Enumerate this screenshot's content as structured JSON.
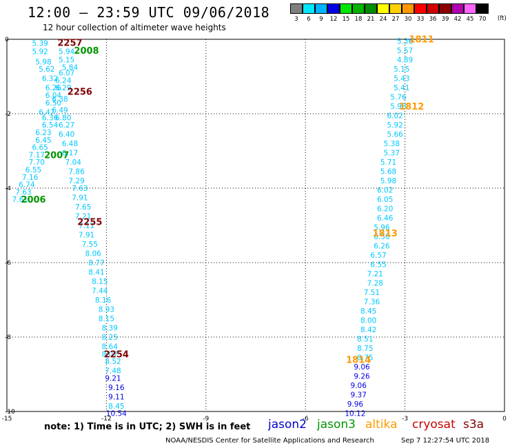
{
  "header": {
    "title": "12:00 – 23:59 UTC 09/06/2018",
    "subtitle": "12 hour collection of altimeter wave heights"
  },
  "colorbar": {
    "bins": [
      {
        "label": "3",
        "color": "#7f7f7f"
      },
      {
        "label": "6",
        "color": "#00e8ff"
      },
      {
        "label": "9",
        "color": "#00b3ff"
      },
      {
        "label": "12",
        "color": "#0000e6"
      },
      {
        "label": "15",
        "color": "#00e600"
      },
      {
        "label": "18",
        "color": "#00b400"
      },
      {
        "label": "21",
        "color": "#008c00"
      },
      {
        "label": "24",
        "color": "#ffff00"
      },
      {
        "label": "27",
        "color": "#ffd000"
      },
      {
        "label": "30",
        "color": "#ff9900"
      },
      {
        "label": "33",
        "color": "#ff0000"
      },
      {
        "label": "36",
        "color": "#d00000"
      },
      {
        "label": "39",
        "color": "#8c0000"
      },
      {
        "label": "42",
        "color": "#b000b0"
      },
      {
        "label": "45",
        "color": "#ff66ff"
      },
      {
        "label": "70",
        "color": "#000000"
      }
    ],
    "unit": "(ft)"
  },
  "footer": {
    "note": "note:  1) Time is in UTC;  2) SWH is in feet",
    "credit": "NOAA/NESDIS Center for Satellite Applications and Research",
    "timestamp": "Sep  7 12:27:54 UTC 2018"
  },
  "legend": [
    {
      "label": "jason2",
      "color": "#0000c8"
    },
    {
      "label": "jason3",
      "color": "#009600"
    },
    {
      "label": "altika",
      "color": "#ff9900"
    },
    {
      "label": "cryosat",
      "color": "#c80000"
    },
    {
      "label": "s3a",
      "color": "#800000"
    }
  ],
  "chart_data": {
    "type": "scatter",
    "xlim": [
      -15,
      0
    ],
    "ylim": [
      -10,
      0
    ],
    "xticks": [
      "-15",
      "-12",
      "-9",
      "-6",
      "-3",
      "0"
    ],
    "yticks": [
      "0",
      "-2",
      "-4",
      "-6",
      "-8",
      "-10"
    ],
    "grid": true,
    "tracks": [
      {
        "name": "jason3",
        "color": "#009600",
        "labels": [
          {
            "text": "2008",
            "x": -12.6,
            "y": -0.3
          },
          {
            "text": "2007",
            "x": -13.5,
            "y": -3.1
          },
          {
            "text": "2006",
            "x": -14.2,
            "y": -4.3
          }
        ]
      },
      {
        "name": "s3a",
        "color": "#800000",
        "labels": [
          {
            "text": "2257",
            "x": -13.1,
            "y": -0.08
          },
          {
            "text": "2256",
            "x": -12.8,
            "y": -1.4
          },
          {
            "text": "2255",
            "x": -12.5,
            "y": -4.9
          },
          {
            "text": "2254",
            "x": -11.7,
            "y": -8.45
          }
        ]
      },
      {
        "name": "altika",
        "color": "#ff9900",
        "labels": [
          {
            "text": "1811",
            "x": -2.5,
            "y": 0.01
          },
          {
            "text": "1812",
            "x": -2.8,
            "y": -1.8
          },
          {
            "text": "1813",
            "x": -3.6,
            "y": -5.2
          },
          {
            "text": "1814",
            "x": -4.4,
            "y": -8.6
          }
        ]
      }
    ],
    "points": [
      {
        "x": -14.0,
        "y": -0.1,
        "v": "5.39",
        "c": "#00c8ff"
      },
      {
        "x": -14.0,
        "y": -0.32,
        "v": "5.92",
        "c": "#00c8ff"
      },
      {
        "x": -13.2,
        "y": -0.32,
        "v": "5.94",
        "c": "#00c8ff"
      },
      {
        "x": -13.9,
        "y": -0.6,
        "v": "5.98",
        "c": "#00c8ff"
      },
      {
        "x": -13.2,
        "y": -0.55,
        "v": "5.15",
        "c": "#00c8ff"
      },
      {
        "x": -13.1,
        "y": -0.75,
        "v": "5.84",
        "c": "#00c8ff"
      },
      {
        "x": -13.8,
        "y": -0.8,
        "v": "5.62",
        "c": "#00c8ff"
      },
      {
        "x": -13.2,
        "y": -0.9,
        "v": "6.07",
        "c": "#00c8ff"
      },
      {
        "x": -13.7,
        "y": -1.05,
        "v": "6.32",
        "c": "#00c8ff"
      },
      {
        "x": -13.3,
        "y": -1.1,
        "v": "6.24",
        "c": "#00c8ff"
      },
      {
        "x": -13.6,
        "y": -1.3,
        "v": "6.26",
        "c": "#00c8ff"
      },
      {
        "x": -13.3,
        "y": -1.3,
        "v": "6.29",
        "c": "#00c8ff"
      },
      {
        "x": -13.6,
        "y": -1.5,
        "v": "6.04",
        "c": "#00c8ff"
      },
      {
        "x": -13.4,
        "y": -1.6,
        "v": "6.38",
        "c": "#00c8ff"
      },
      {
        "x": -13.6,
        "y": -1.7,
        "v": "6.50",
        "c": "#00c8ff"
      },
      {
        "x": -13.4,
        "y": -1.9,
        "v": "6.49",
        "c": "#00c8ff"
      },
      {
        "x": -13.8,
        "y": -1.95,
        "v": "6.47",
        "c": "#00c8ff"
      },
      {
        "x": -13.7,
        "y": -2.1,
        "v": "6.36",
        "c": "#00c8ff"
      },
      {
        "x": -13.3,
        "y": -2.1,
        "v": "6.80",
        "c": "#00c8ff"
      },
      {
        "x": -13.7,
        "y": -2.3,
        "v": "6.54",
        "c": "#00c8ff"
      },
      {
        "x": -13.2,
        "y": -2.3,
        "v": "6.27",
        "c": "#00c8ff"
      },
      {
        "x": -13.9,
        "y": -2.5,
        "v": "6.23",
        "c": "#00c8ff"
      },
      {
        "x": -13.2,
        "y": -2.55,
        "v": "6.40",
        "c": "#00c8ff"
      },
      {
        "x": -13.9,
        "y": -2.7,
        "v": "6.45",
        "c": "#00c8ff"
      },
      {
        "x": -13.1,
        "y": -2.8,
        "v": "6.48",
        "c": "#00c8ff"
      },
      {
        "x": -14.0,
        "y": -2.9,
        "v": "6.65",
        "c": "#00c8ff"
      },
      {
        "x": -13.1,
        "y": -3.05,
        "v": "6.17",
        "c": "#00c8ff"
      },
      {
        "x": -14.1,
        "y": -3.1,
        "v": "7.17",
        "c": "#00c8ff"
      },
      {
        "x": -14.1,
        "y": -3.3,
        "v": "7.70",
        "c": "#00c8ff"
      },
      {
        "x": -13.0,
        "y": -3.3,
        "v": "7.04",
        "c": "#00c8ff"
      },
      {
        "x": -14.2,
        "y": -3.5,
        "v": "6.55",
        "c": "#00c8ff"
      },
      {
        "x": -12.9,
        "y": -3.55,
        "v": "7.86",
        "c": "#00c8ff"
      },
      {
        "x": -14.3,
        "y": -3.7,
        "v": "7.16",
        "c": "#00c8ff"
      },
      {
        "x": -12.9,
        "y": -3.8,
        "v": "7.29",
        "c": "#00c8ff"
      },
      {
        "x": -14.4,
        "y": -3.9,
        "v": "6.74",
        "c": "#00c8ff"
      },
      {
        "x": -12.8,
        "y": -4.0,
        "v": "7.63",
        "c": "#00c8ff"
      },
      {
        "x": -14.5,
        "y": -4.1,
        "v": "7.63",
        "c": "#00c8ff"
      },
      {
        "x": -14.6,
        "y": -4.3,
        "v": "7.61",
        "c": "#00c8ff"
      },
      {
        "x": -12.8,
        "y": -4.25,
        "v": "7.91",
        "c": "#00c8ff"
      },
      {
        "x": -12.7,
        "y": -4.5,
        "v": "7.65",
        "c": "#00c8ff"
      },
      {
        "x": -12.7,
        "y": -4.75,
        "v": "7.21",
        "c": "#00c8ff"
      },
      {
        "x": -12.6,
        "y": -5.0,
        "v": "7.11",
        "c": "#00c8ff"
      },
      {
        "x": -12.6,
        "y": -5.25,
        "v": "7.91",
        "c": "#00c8ff"
      },
      {
        "x": -12.5,
        "y": -5.5,
        "v": "7.55",
        "c": "#00c8ff"
      },
      {
        "x": -12.4,
        "y": -5.75,
        "v": "8.06",
        "c": "#00c8ff"
      },
      {
        "x": -12.3,
        "y": -6.0,
        "v": "8.77",
        "c": "#00c8ff"
      },
      {
        "x": -12.3,
        "y": -6.25,
        "v": "8.41",
        "c": "#00c8ff"
      },
      {
        "x": -12.2,
        "y": -6.5,
        "v": "8.15",
        "c": "#00c8ff"
      },
      {
        "x": -12.2,
        "y": -6.75,
        "v": "7.44",
        "c": "#00c8ff"
      },
      {
        "x": -12.1,
        "y": -7.0,
        "v": "8.16",
        "c": "#00c8ff"
      },
      {
        "x": -12.0,
        "y": -7.25,
        "v": "8.93",
        "c": "#00c8ff"
      },
      {
        "x": -12.0,
        "y": -7.5,
        "v": "8.15",
        "c": "#00c8ff"
      },
      {
        "x": -11.9,
        "y": -7.75,
        "v": "8.39",
        "c": "#00c8ff"
      },
      {
        "x": -11.9,
        "y": -8.0,
        "v": "8.25",
        "c": "#00c8ff"
      },
      {
        "x": -11.9,
        "y": -8.25,
        "v": "8.64",
        "c": "#00c8ff"
      },
      {
        "x": -11.9,
        "y": -8.45,
        "v": "8.07",
        "c": "#00c8ff"
      },
      {
        "x": -11.8,
        "y": -8.65,
        "v": "8.52",
        "c": "#00c8ff"
      },
      {
        "x": -11.8,
        "y": -8.9,
        "v": "7.48",
        "c": "#00c8ff"
      },
      {
        "x": -11.8,
        "y": -9.1,
        "v": "9.21",
        "c": "#0000e6"
      },
      {
        "x": -11.7,
        "y": -9.35,
        "v": "9.16",
        "c": "#0000e6"
      },
      {
        "x": -11.7,
        "y": -9.6,
        "v": "9.11",
        "c": "#0000e6"
      },
      {
        "x": -11.7,
        "y": -9.85,
        "v": "8.45",
        "c": "#00c8ff"
      },
      {
        "x": -11.7,
        "y": -10.05,
        "v": "10.54",
        "c": "#0000e6"
      },
      {
        "x": -3.0,
        "y": -0.05,
        "v": "5.36",
        "c": "#00c8ff"
      },
      {
        "x": -3.0,
        "y": -0.3,
        "v": "5.57",
        "c": "#00c8ff"
      },
      {
        "x": -3.0,
        "y": -0.55,
        "v": "4.89",
        "c": "#00c8ff"
      },
      {
        "x": -3.1,
        "y": -0.8,
        "v": "5.15",
        "c": "#00c8ff"
      },
      {
        "x": -3.1,
        "y": -1.05,
        "v": "5.43",
        "c": "#00c8ff"
      },
      {
        "x": -3.1,
        "y": -1.3,
        "v": "5.41",
        "c": "#00c8ff"
      },
      {
        "x": -3.2,
        "y": -1.55,
        "v": "5.76",
        "c": "#00c8ff"
      },
      {
        "x": -3.2,
        "y": -1.8,
        "v": "5.98",
        "c": "#00c8ff"
      },
      {
        "x": -3.3,
        "y": -2.05,
        "v": "6.02",
        "c": "#00c8ff"
      },
      {
        "x": -3.3,
        "y": -2.3,
        "v": "5.92",
        "c": "#00c8ff"
      },
      {
        "x": -3.3,
        "y": -2.55,
        "v": "5.66",
        "c": "#00c8ff"
      },
      {
        "x": -3.4,
        "y": -2.8,
        "v": "5.38",
        "c": "#00c8ff"
      },
      {
        "x": -3.4,
        "y": -3.05,
        "v": "5.37",
        "c": "#00c8ff"
      },
      {
        "x": -3.5,
        "y": -3.3,
        "v": "5.71",
        "c": "#00c8ff"
      },
      {
        "x": -3.5,
        "y": -3.55,
        "v": "5.68",
        "c": "#00c8ff"
      },
      {
        "x": -3.5,
        "y": -3.8,
        "v": "5.98",
        "c": "#00c8ff"
      },
      {
        "x": -3.6,
        "y": -4.05,
        "v": "6.02",
        "c": "#00c8ff"
      },
      {
        "x": -3.6,
        "y": -4.3,
        "v": "6.05",
        "c": "#00c8ff"
      },
      {
        "x": -3.6,
        "y": -4.55,
        "v": "6.20",
        "c": "#00c8ff"
      },
      {
        "x": -3.6,
        "y": -4.8,
        "v": "6.46",
        "c": "#00c8ff"
      },
      {
        "x": -3.7,
        "y": -5.05,
        "v": "5.96",
        "c": "#00c8ff"
      },
      {
        "x": -3.7,
        "y": -5.3,
        "v": "6.50",
        "c": "#00c8ff"
      },
      {
        "x": -3.7,
        "y": -5.55,
        "v": "6.26",
        "c": "#00c8ff"
      },
      {
        "x": -3.8,
        "y": -5.8,
        "v": "6.57",
        "c": "#00c8ff"
      },
      {
        "x": -3.8,
        "y": -6.05,
        "v": "6.55",
        "c": "#00c8ff"
      },
      {
        "x": -3.9,
        "y": -6.3,
        "v": "7.21",
        "c": "#00c8ff"
      },
      {
        "x": -3.9,
        "y": -6.55,
        "v": "7.28",
        "c": "#00c8ff"
      },
      {
        "x": -4.0,
        "y": -6.8,
        "v": "7.51",
        "c": "#00c8ff"
      },
      {
        "x": -4.0,
        "y": -7.05,
        "v": "7.36",
        "c": "#00c8ff"
      },
      {
        "x": -4.1,
        "y": -7.3,
        "v": "8.45",
        "c": "#00c8ff"
      },
      {
        "x": -4.1,
        "y": -7.55,
        "v": "8.00",
        "c": "#00c8ff"
      },
      {
        "x": -4.1,
        "y": -7.8,
        "v": "8.42",
        "c": "#00c8ff"
      },
      {
        "x": -4.2,
        "y": -8.05,
        "v": "8.51",
        "c": "#00c8ff"
      },
      {
        "x": -4.2,
        "y": -8.3,
        "v": "8.75",
        "c": "#00c8ff"
      },
      {
        "x": -4.2,
        "y": -8.55,
        "v": "8.75",
        "c": "#00c8ff"
      },
      {
        "x": -4.3,
        "y": -8.8,
        "v": "9.06",
        "c": "#0000e6"
      },
      {
        "x": -4.3,
        "y": -9.05,
        "v": "9.26",
        "c": "#0000e6"
      },
      {
        "x": -4.4,
        "y": -9.3,
        "v": "9.06",
        "c": "#0000e6"
      },
      {
        "x": -4.4,
        "y": -9.55,
        "v": "9.37",
        "c": "#0000e6"
      },
      {
        "x": -4.5,
        "y": -9.8,
        "v": "9.96",
        "c": "#0000e6"
      },
      {
        "x": -4.5,
        "y": -10.05,
        "v": "10.12",
        "c": "#0000e6"
      }
    ]
  }
}
